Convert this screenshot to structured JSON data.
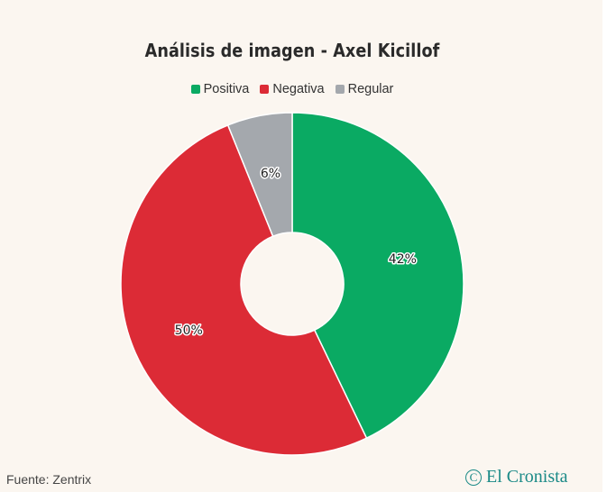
{
  "chart_data": {
    "type": "pie",
    "variant": "donut",
    "title": "Análisis de imagen - Axel Kicillof",
    "legend_placement": "top",
    "categories": [
      "Positiva",
      "Negativa",
      "Regular"
    ],
    "values": [
      42,
      50,
      6
    ],
    "labels": [
      "42%",
      "50%",
      "6%"
    ],
    "colors": [
      "#0aaa63",
      "#dc2b36",
      "#a4a8ad"
    ]
  },
  "source_text": "Fuente: Zentrix",
  "brand": {
    "logo_letter": "C",
    "name": "El Cronista",
    "color": "#1b8a87"
  }
}
